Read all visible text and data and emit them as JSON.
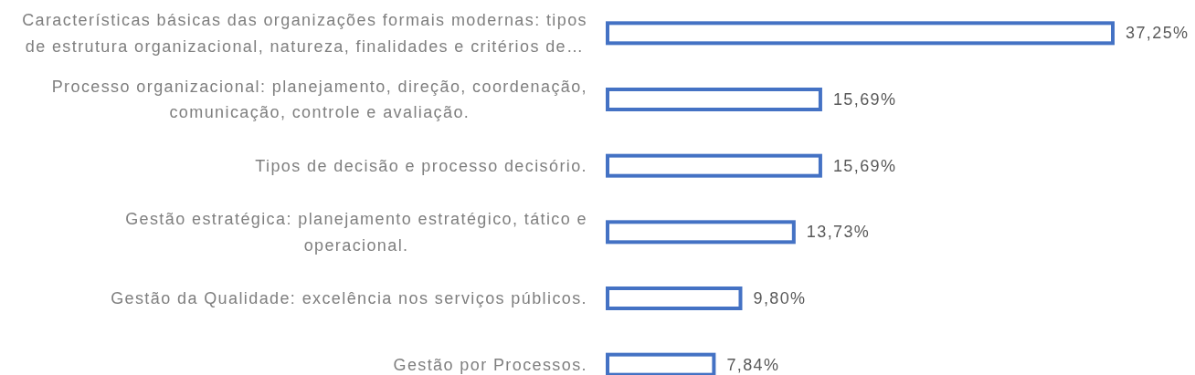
{
  "chart_data": {
    "type": "bar",
    "orientation": "horizontal",
    "categories": [
      "Características básicas das organizações formais modernas: tipos de estrutura organizacional, natureza, finalidades e critérios de…",
      "Processo organizacional: planejamento, direção, coordenação, comunicação, controle e avaliação.",
      "Tipos de decisão e processo decisório.",
      "Gestão estratégica: planejamento estratégico, tático e operacional.",
      "Gestão da Qualidade: excelência nos serviços públicos.",
      "Gestão por Processos."
    ],
    "values": [
      37.25,
      15.69,
      15.69,
      13.73,
      9.8,
      7.84
    ],
    "value_labels": [
      "37,25%",
      "15,69%",
      "15,69%",
      "13,73%",
      "9,80%",
      "7,84%"
    ],
    "color": "#4472c4"
  }
}
